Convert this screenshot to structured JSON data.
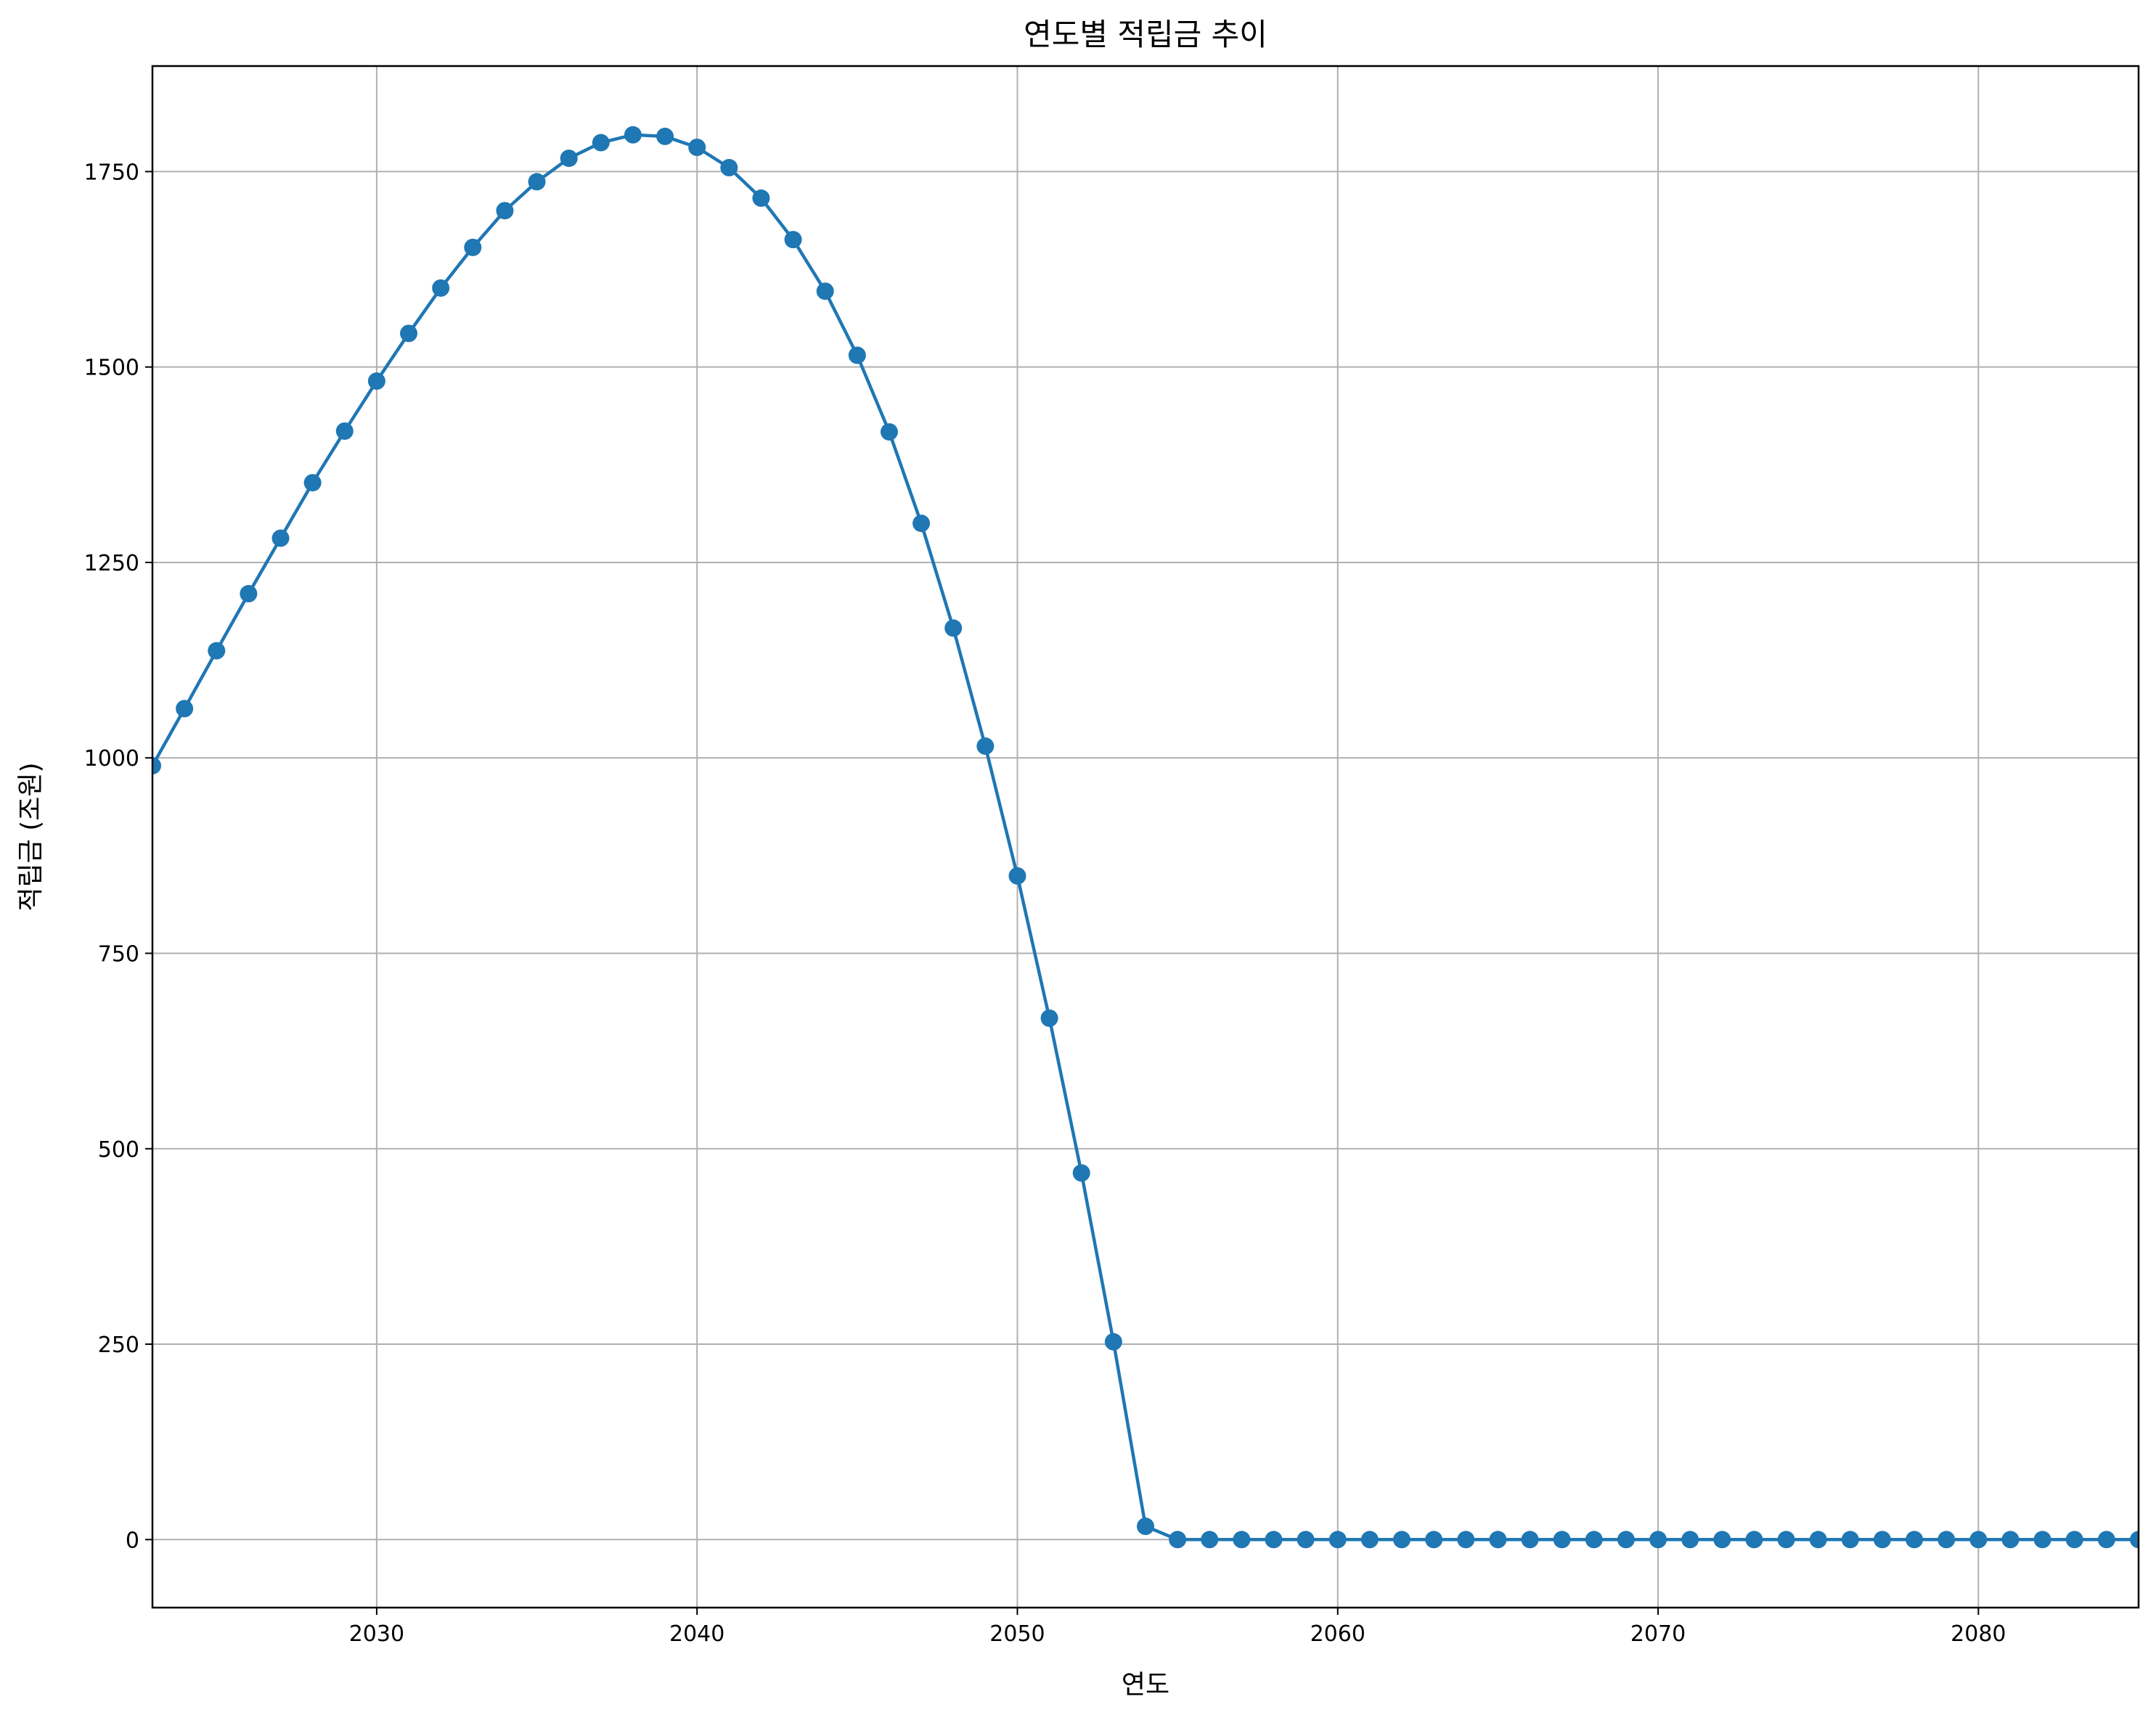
{
  "chart_data": {
    "type": "line",
    "title": "연도별 적립금 추이",
    "xlabel": "연도",
    "ylabel": "적립금 (조원)",
    "xlim": [
      2023,
      2085
    ],
    "ylim": [
      -87,
      1885
    ],
    "xticks": [
      2030,
      2040,
      2050,
      2060,
      2070,
      2080
    ],
    "yticks": [
      0,
      250,
      500,
      750,
      1000,
      1250,
      1500,
      1750
    ],
    "grid": true,
    "marker": "circle",
    "color": "#1f77b4",
    "series": [
      {
        "x": [
          2023,
          2024,
          2025,
          2026,
          2027,
          2028,
          2029,
          2030,
          2031,
          2032,
          2033,
          2034,
          2035,
          2036,
          2037,
          2038,
          2039,
          2040,
          2041,
          2042,
          2043,
          2044,
          2045,
          2046,
          2047,
          2048,
          2049,
          2050,
          2051,
          2052,
          2053,
          2054,
          2055,
          2056,
          2057,
          2058,
          2059,
          2060,
          2061,
          2062,
          2063,
          2064,
          2065,
          2066,
          2067,
          2068,
          2069,
          2070,
          2071,
          2072,
          2073,
          2074,
          2075,
          2076,
          2077,
          2078,
          2079,
          2080,
          2081,
          2082,
          2083,
          2084,
          2085
        ],
        "values": [
          990,
          1063,
          1137,
          1210,
          1281,
          1352,
          1418,
          1482,
          1543,
          1601,
          1653,
          1700,
          1737,
          1767,
          1787,
          1797,
          1795,
          1781,
          1755,
          1716,
          1663,
          1597,
          1515,
          1417,
          1300,
          1166,
          1015,
          849,
          667,
          469,
          253,
          17,
          0,
          0,
          0,
          0,
          0,
          0,
          0,
          0,
          0,
          0,
          0,
          0,
          0,
          0,
          0,
          0,
          0,
          0,
          0,
          0,
          0,
          0,
          0,
          0,
          0,
          0,
          0,
          0,
          0,
          0,
          0
        ]
      }
    ]
  }
}
